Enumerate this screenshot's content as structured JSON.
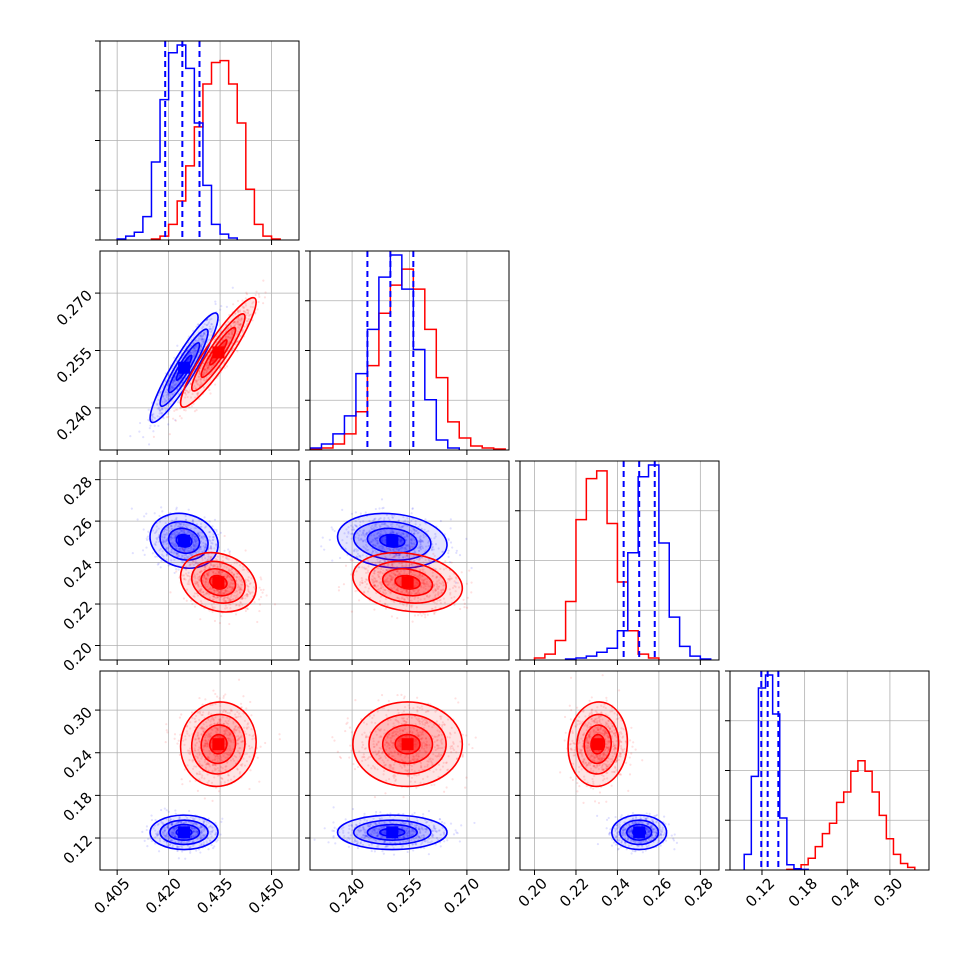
{
  "chart_data": {
    "type": "corner",
    "grid": true,
    "colors": {
      "blue": "#0000ff",
      "red": "#ff0000",
      "grid": "#b0b0b0",
      "axes": "#000000"
    },
    "parameters": [
      {
        "range": [
          0.4,
          0.458
        ],
        "ticks": [
          "0.405",
          "0.420",
          "0.435",
          "0.450"
        ],
        "tick_values": [
          0.405,
          0.42,
          0.435,
          0.45
        ]
      },
      {
        "range": [
          0.229,
          0.281
        ],
        "ticks": [
          "0.240",
          "0.255",
          "0.270"
        ],
        "tick_values": [
          0.24,
          0.255,
          0.27
        ]
      },
      {
        "range": [
          0.193,
          0.289
        ],
        "ticks": [
          "0.20",
          "0.22",
          "0.24",
          "0.26",
          "0.28"
        ],
        "tick_values": [
          0.2,
          0.22,
          0.24,
          0.26,
          0.28
        ]
      },
      {
        "range": [
          0.075,
          0.355
        ],
        "ticks": [
          "0.12",
          "0.18",
          "0.24",
          "0.30"
        ],
        "tick_values": [
          0.12,
          0.18,
          0.24,
          0.3
        ]
      }
    ],
    "series": [
      {
        "color": "blue",
        "means": [
          0.4245,
          0.2505,
          0.2505,
          0.128
        ],
        "sds": [
          0.0045,
          0.0065,
          0.006,
          0.011
        ],
        "quantiles": [
          [
            0.419,
            0.424,
            0.429
          ],
          [
            0.244,
            0.25,
            0.256
          ],
          [
            0.243,
            0.2505,
            0.258
          ],
          [
            0.119,
            0.128,
            0.143
          ]
        ],
        "correlations": [
          [
            0,
            1,
            0.92
          ],
          [
            0,
            2,
            -0.15
          ],
          [
            1,
            2,
            -0.15
          ],
          [
            0,
            3,
            0.0
          ],
          [
            1,
            3,
            0.0
          ],
          [
            2,
            3,
            0.0
          ]
        ]
      },
      {
        "color": "red",
        "means": [
          0.4345,
          0.2545,
          0.2305,
          0.252
        ],
        "sds": [
          0.005,
          0.0065,
          0.0065,
          0.027
        ],
        "correlations": [
          [
            0,
            1,
            0.92
          ],
          [
            0,
            2,
            -0.2
          ],
          [
            1,
            2,
            -0.2
          ],
          [
            0,
            3,
            0.05
          ],
          [
            1,
            3,
            0.0
          ],
          [
            2,
            3,
            0.05
          ]
        ]
      }
    ],
    "histograms": [
      {
        "blue": {
          "edges": [
            0.405,
            0.4075,
            0.41,
            0.4125,
            0.415,
            0.4175,
            0.42,
            0.4225,
            0.425,
            0.4275,
            0.43,
            0.4325,
            0.435,
            0.4375,
            0.44
          ],
          "counts": [
            0.5,
            2,
            4,
            12,
            40,
            72,
            96,
            100,
            88,
            60,
            28,
            8,
            3,
            1
          ]
        },
        "red": {
          "edges": [
            0.415,
            0.4175,
            0.42,
            0.4225,
            0.425,
            0.4275,
            0.43,
            0.4325,
            0.435,
            0.4375,
            0.44,
            0.4425,
            0.445,
            0.4475,
            0.45,
            0.4525
          ],
          "counts": [
            0.5,
            2,
            8,
            20,
            38,
            58,
            80,
            91,
            92,
            80,
            60,
            26,
            8,
            2,
            0.5
          ]
        }
      },
      {
        "blue": {
          "edges": [
            0.229,
            0.232,
            0.235,
            0.238,
            0.241,
            0.244,
            0.247,
            0.25,
            0.253,
            0.256,
            0.259,
            0.262,
            0.265,
            0.268
          ],
          "counts": [
            1,
            3,
            8,
            17,
            38,
            60,
            86,
            97,
            80,
            50,
            25,
            5,
            1
          ]
        },
        "red": {
          "edges": [
            0.229,
            0.232,
            0.235,
            0.238,
            0.241,
            0.244,
            0.247,
            0.25,
            0.253,
            0.256,
            0.259,
            0.262,
            0.265,
            0.268,
            0.271,
            0.274,
            0.277,
            0.28
          ],
          "counts": [
            0.5,
            1,
            3,
            8,
            19,
            42,
            68,
            82,
            90,
            80,
            60,
            36,
            14,
            6,
            2,
            1,
            0.5
          ]
        }
      },
      {
        "blue": {
          "edges": [
            0.215,
            0.22,
            0.225,
            0.23,
            0.235,
            0.24,
            0.245,
            0.25,
            0.255,
            0.26,
            0.265,
            0.27,
            0.275,
            0.28,
            0.285
          ],
          "counts": [
            0.5,
            1,
            2,
            4,
            6,
            15,
            55,
            94,
            100,
            60,
            22,
            7,
            2,
            0.5
          ]
        },
        "red": {
          "edges": [
            0.2,
            0.205,
            0.21,
            0.215,
            0.22,
            0.225,
            0.23,
            0.235,
            0.24,
            0.245,
            0.25,
            0.255,
            0.26
          ],
          "counts": [
            1,
            3,
            10,
            30,
            72,
            93,
            97,
            70,
            40,
            15,
            3,
            1
          ]
        }
      },
      {
        "blue": {
          "edges": [
            0.095,
            0.105,
            0.115,
            0.125,
            0.135,
            0.145,
            0.155,
            0.165,
            0.175,
            0.185
          ],
          "counts": [
            12,
            72,
            140,
            150,
            120,
            40,
            4,
            1,
            0.5
          ]
        },
        "red": {
          "edges": [
            0.155,
            0.165,
            0.175,
            0.185,
            0.195,
            0.205,
            0.215,
            0.225,
            0.235,
            0.245,
            0.255,
            0.265,
            0.275,
            0.285,
            0.295,
            0.305,
            0.315,
            0.325,
            0.335
          ],
          "counts": [
            0.5,
            1,
            4,
            9,
            18,
            28,
            36,
            52,
            60,
            76,
            84,
            76,
            60,
            42,
            24,
            12,
            5,
            2
          ]
        }
      }
    ]
  }
}
